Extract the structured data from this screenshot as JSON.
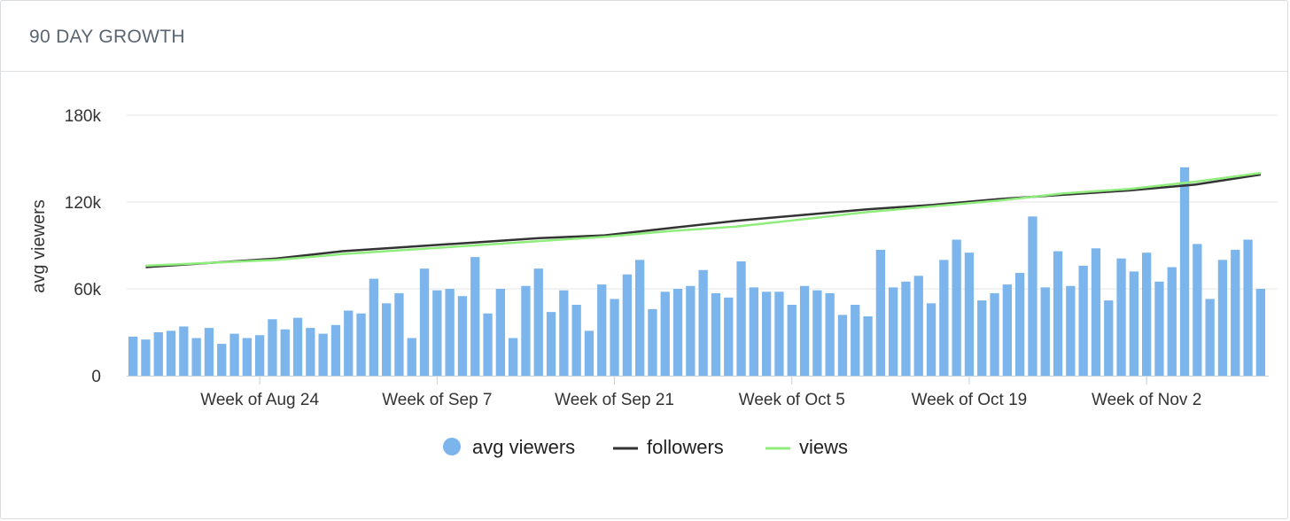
{
  "header": {
    "title": "90 DAY GROWTH"
  },
  "chart_data": {
    "type": "bar",
    "ylabel": "avg viewers",
    "ylim": [
      0,
      180000
    ],
    "yticks": [
      0,
      60000,
      120000,
      180000
    ],
    "ytick_labels": [
      "0",
      "60k",
      "120k",
      "180k"
    ],
    "xtick_labels": [
      "Week of Aug 24",
      "Week of Sep 7",
      "Week of Sep 21",
      "Week of Oct 5",
      "Week of Oct 19",
      "Week of Nov 2"
    ],
    "xtick_day_index": [
      10,
      24,
      38,
      52,
      66,
      80
    ],
    "grid": true,
    "legend_position": "bottom",
    "colors": {
      "bars": "#7cb5ec",
      "followers": "#333333",
      "views": "#90ed7d"
    },
    "series": [
      {
        "name": "avg viewers",
        "type": "bar",
        "values": [
          27000,
          25000,
          30000,
          31000,
          34000,
          26000,
          33000,
          22000,
          29000,
          26000,
          28000,
          39000,
          32000,
          40000,
          33000,
          29000,
          35000,
          45000,
          43000,
          67000,
          50000,
          57000,
          26000,
          74000,
          59000,
          60000,
          55000,
          82000,
          43000,
          60000,
          26000,
          62000,
          74000,
          44000,
          59000,
          49000,
          31000,
          63000,
          53000,
          70000,
          80000,
          46000,
          58000,
          60000,
          62000,
          73000,
          57000,
          54000,
          79000,
          61000,
          58000,
          58000,
          49000,
          62000,
          59000,
          57000,
          42000,
          49000,
          41000,
          87000,
          61000,
          65000,
          69000,
          50000,
          80000,
          94000,
          85000,
          52000,
          57000,
          63000,
          71000,
          110000,
          61000,
          86000,
          62000,
          76000,
          88000,
          52000,
          81000,
          72000,
          85000,
          65000,
          75000,
          144000,
          91000,
          53000,
          80000,
          87000,
          94000,
          60000
        ]
      },
      {
        "name": "followers",
        "type": "line",
        "values": [
          75000,
          78000,
          81000,
          86000,
          89000,
          92000,
          95000,
          97000,
          102000,
          107000,
          111000,
          115000,
          118000,
          122000,
          125000,
          128000,
          132000,
          139000
        ]
      },
      {
        "name": "views",
        "type": "line",
        "values": [
          76000,
          78000,
          80000,
          84000,
          87000,
          90000,
          93000,
          96000,
          100000,
          103000,
          108000,
          113000,
          117000,
          121000,
          126000,
          129000,
          134000,
          140000
        ]
      }
    ]
  }
}
